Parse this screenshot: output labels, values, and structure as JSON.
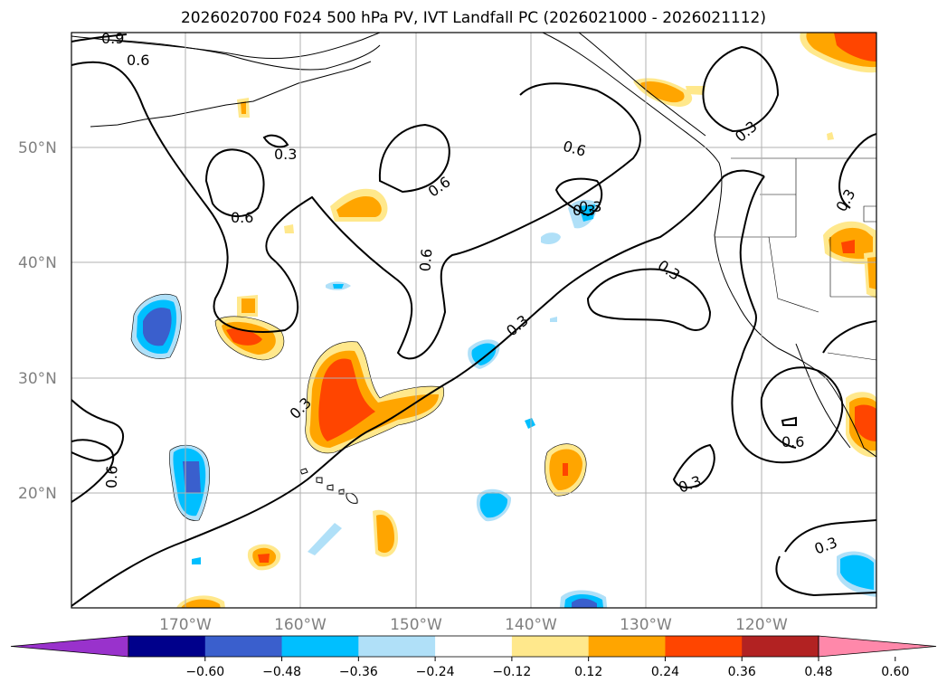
{
  "title": "2026020700 F024 500 hPa PV, IVT Landfall PC (2026021000 - 2026021112)",
  "lat_labels": [
    "50°N",
    "40°N",
    "30°N",
    "20°N"
  ],
  "lon_labels": [
    "170°W",
    "160°W",
    "150°W",
    "140°W",
    "130°W",
    "120°W"
  ],
  "contour_labels": [
    "0.9",
    "0.6",
    "0.3",
    "0.6",
    "0.6",
    "0.6",
    "0.3",
    "0.6",
    "0.3",
    "0.3",
    "0.3",
    "0.3",
    "0.3",
    "0.6",
    "0.3",
    "0.3",
    "0.6",
    "0.3"
  ],
  "colorbar": {
    "ticks": [
      "−0.60",
      "−0.48",
      "−0.36",
      "−0.24",
      "−0.12",
      "0.12",
      "0.24",
      "0.36",
      "0.48",
      "0.60"
    ],
    "colors": [
      "#9932cc",
      "#00008b",
      "#3a5fcd",
      "#00bfff",
      "#b0e0f8",
      "#ffffff",
      "#ffe88c",
      "#ffa500",
      "#ff4500",
      "#b22222",
      "#ff88aa"
    ]
  }
}
